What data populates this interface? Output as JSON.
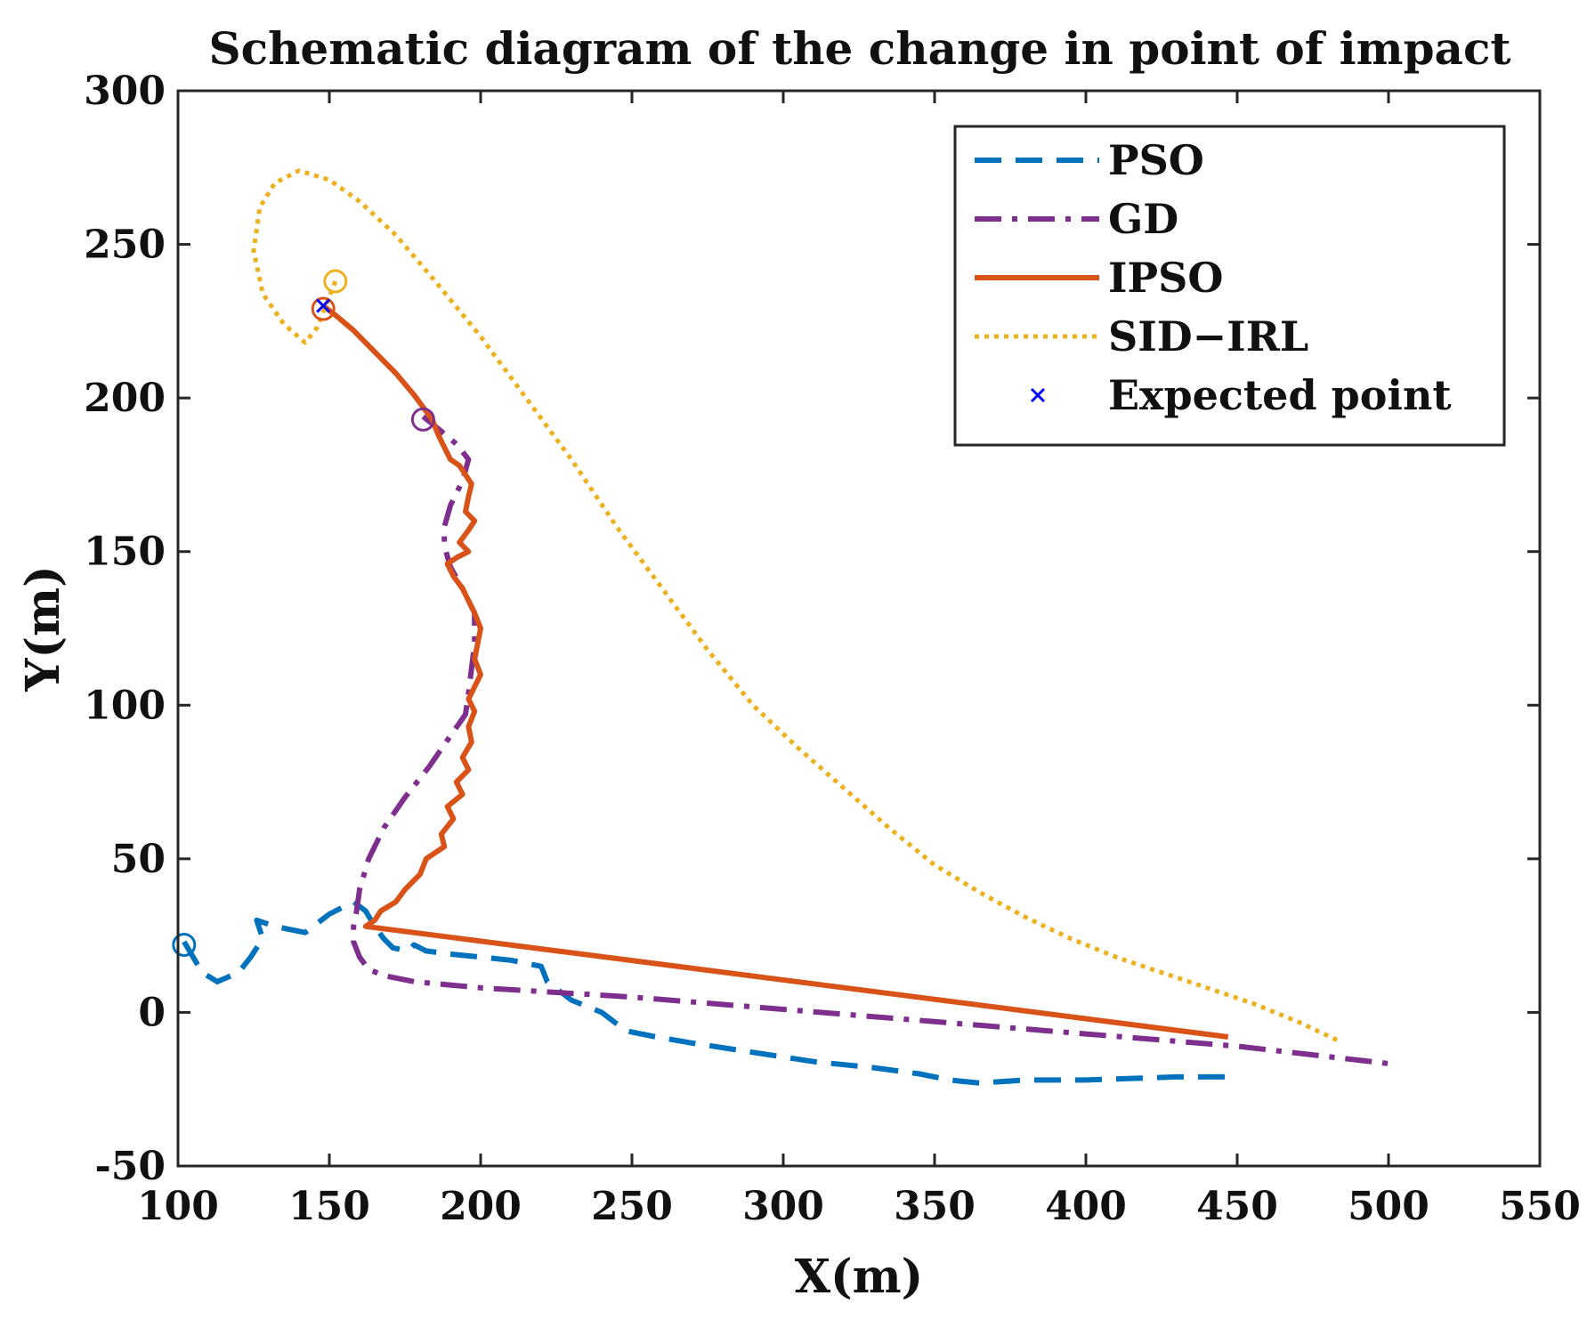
{
  "chart_data": {
    "type": "line",
    "title": "Schematic diagram of the change in point of impact",
    "xlabel": "X(m)",
    "ylabel": "Y(m)",
    "xlim": [
      100,
      550
    ],
    "ylim": [
      -50,
      300
    ],
    "xticks": [
      100,
      150,
      200,
      250,
      300,
      350,
      400,
      450,
      500,
      550
    ],
    "yticks": [
      -50,
      0,
      50,
      100,
      150,
      200,
      250,
      300
    ],
    "legend_position": "top-right",
    "series": [
      {
        "name": "PSO",
        "color": "#0072BD",
        "style": "dashed",
        "points": [
          [
            102,
            23
          ],
          [
            105,
            18
          ],
          [
            108,
            13
          ],
          [
            113,
            10
          ],
          [
            120,
            13
          ],
          [
            124,
            18
          ],
          [
            128,
            24
          ],
          [
            126,
            30
          ],
          [
            132,
            28
          ],
          [
            142,
            26
          ],
          [
            150,
            32
          ],
          [
            158,
            36
          ],
          [
            162,
            33
          ],
          [
            165,
            28
          ],
          [
            168,
            24
          ],
          [
            171,
            21
          ],
          [
            176,
            20
          ],
          [
            178,
            22
          ],
          [
            182,
            20
          ],
          [
            190,
            19
          ],
          [
            200,
            18
          ],
          [
            210,
            17
          ],
          [
            220,
            15
          ],
          [
            222,
            10
          ],
          [
            230,
            4
          ],
          [
            240,
            0
          ],
          [
            248,
            -6
          ],
          [
            258,
            -8
          ],
          [
            270,
            -10
          ],
          [
            290,
            -13
          ],
          [
            310,
            -16
          ],
          [
            330,
            -18
          ],
          [
            345,
            -20
          ],
          [
            355,
            -22
          ],
          [
            365,
            -23
          ],
          [
            380,
            -22
          ],
          [
            400,
            -22
          ],
          [
            430,
            -21
          ],
          [
            447,
            -21
          ]
        ],
        "start_marker": [
          102,
          22
        ]
      },
      {
        "name": "GD",
        "color": "#7E2F8E",
        "style": "dashdot",
        "points": [
          [
            181,
            194
          ],
          [
            186,
            190
          ],
          [
            192,
            185
          ],
          [
            196,
            180
          ],
          [
            194,
            173
          ],
          [
            190,
            165
          ],
          [
            188,
            158
          ],
          [
            188,
            152
          ],
          [
            190,
            145
          ],
          [
            194,
            138
          ],
          [
            198,
            130
          ],
          [
            198,
            120
          ],
          [
            197,
            112
          ],
          [
            196,
            104
          ],
          [
            195,
            97
          ],
          [
            190,
            90
          ],
          [
            183,
            80
          ],
          [
            175,
            70
          ],
          [
            168,
            60
          ],
          [
            163,
            50
          ],
          [
            160,
            40
          ],
          [
            159,
            33
          ],
          [
            158,
            28
          ],
          [
            158,
            23
          ],
          [
            160,
            18
          ],
          [
            163,
            14
          ],
          [
            168,
            12
          ],
          [
            178,
            10
          ],
          [
            200,
            8
          ],
          [
            250,
            5
          ],
          [
            300,
            1
          ],
          [
            350,
            -3
          ],
          [
            400,
            -7
          ],
          [
            450,
            -11
          ],
          [
            503,
            -17
          ]
        ],
        "start_marker": [
          181,
          193
        ]
      },
      {
        "name": "IPSO",
        "color": "#D95319",
        "style": "solid",
        "points": [
          [
            148,
            230
          ],
          [
            152,
            227
          ],
          [
            158,
            222
          ],
          [
            165,
            215
          ],
          [
            172,
            208
          ],
          [
            178,
            201
          ],
          [
            181,
            197
          ],
          [
            184,
            193
          ],
          [
            186,
            188
          ],
          [
            188,
            184
          ],
          [
            190,
            180
          ],
          [
            193,
            178
          ],
          [
            195,
            175
          ],
          [
            197,
            172
          ],
          [
            196,
            168
          ],
          [
            195,
            163
          ],
          [
            198,
            160
          ],
          [
            196,
            157
          ],
          [
            193,
            153
          ],
          [
            196,
            150
          ],
          [
            192,
            148
          ],
          [
            189,
            146
          ],
          [
            191,
            142
          ],
          [
            194,
            138
          ],
          [
            196,
            134
          ],
          [
            198,
            130
          ],
          [
            200,
            125
          ],
          [
            199,
            120
          ],
          [
            198,
            115
          ],
          [
            200,
            110
          ],
          [
            198,
            106
          ],
          [
            196,
            102
          ],
          [
            198,
            98
          ],
          [
            196,
            93
          ],
          [
            197,
            88
          ],
          [
            194,
            83
          ],
          [
            196,
            79
          ],
          [
            192,
            75
          ],
          [
            194,
            71
          ],
          [
            189,
            67
          ],
          [
            191,
            63
          ],
          [
            187,
            58
          ],
          [
            188,
            54
          ],
          [
            182,
            50
          ],
          [
            180,
            45
          ],
          [
            175,
            40
          ],
          [
            172,
            36
          ],
          [
            167,
            33
          ],
          [
            165,
            30
          ],
          [
            162,
            28
          ],
          [
            447,
            -8
          ]
        ],
        "start_marker": [
          148,
          229
        ]
      },
      {
        "name": "SID−IRL",
        "color": "#EDB120",
        "style": "dotted",
        "points": [
          [
            152,
            238
          ],
          [
            150,
            233
          ],
          [
            146,
            223
          ],
          [
            142,
            218
          ],
          [
            135,
            224
          ],
          [
            128,
            234
          ],
          [
            125,
            248
          ],
          [
            127,
            262
          ],
          [
            132,
            270
          ],
          [
            140,
            274
          ],
          [
            150,
            271
          ],
          [
            160,
            264
          ],
          [
            172,
            253
          ],
          [
            185,
            238
          ],
          [
            200,
            220
          ],
          [
            215,
            200
          ],
          [
            230,
            180
          ],
          [
            245,
            158
          ],
          [
            260,
            138
          ],
          [
            275,
            118
          ],
          [
            290,
            100
          ],
          [
            305,
            86
          ],
          [
            320,
            73
          ],
          [
            335,
            60
          ],
          [
            350,
            48
          ],
          [
            365,
            39
          ],
          [
            380,
            31
          ],
          [
            395,
            24
          ],
          [
            410,
            18
          ],
          [
            425,
            13
          ],
          [
            440,
            8
          ],
          [
            455,
            3
          ],
          [
            470,
            -3
          ],
          [
            483,
            -9
          ]
        ],
        "start_marker": [
          152,
          238
        ]
      }
    ],
    "expected_point": {
      "name": "Expected point",
      "x": 148,
      "y": 230,
      "color": "#0000FF"
    }
  }
}
